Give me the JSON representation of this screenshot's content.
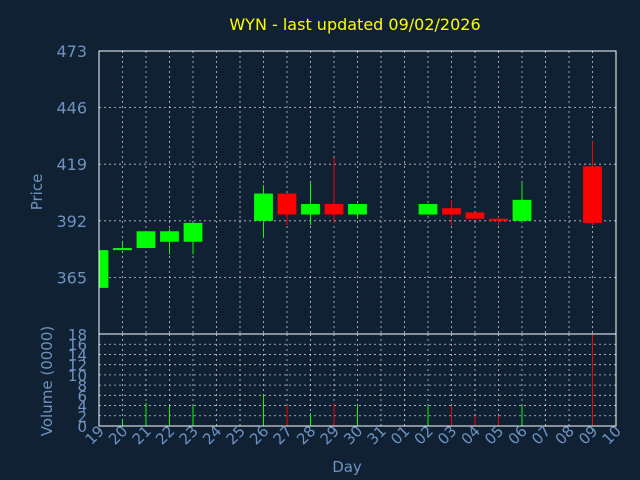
{
  "chart_data": [
    {
      "type": "candlestick",
      "title": "WYN - last updated 09/02/2026",
      "ylabel": "Price",
      "xlabel": "Day",
      "ylim": [
        338,
        473
      ],
      "yticks": [
        365,
        392,
        419,
        446,
        473
      ],
      "grid": true,
      "x": [
        "19",
        "20",
        "21",
        "22",
        "23",
        "24",
        "25",
        "26",
        "27",
        "28",
        "29",
        "30",
        "31",
        "01",
        "02",
        "03",
        "04",
        "05",
        "06",
        "07",
        "08",
        "09",
        "10"
      ],
      "candles": [
        {
          "day": "19",
          "open": 360,
          "close": 378,
          "high": 378,
          "low": 359,
          "color": "up"
        },
        {
          "day": "20",
          "open": 378,
          "close": 379,
          "high": 382,
          "low": 378,
          "color": "up"
        },
        {
          "day": "21",
          "open": 379,
          "close": 387,
          "high": 387,
          "low": 379,
          "color": "up"
        },
        {
          "day": "22",
          "open": 382,
          "close": 387,
          "high": 388,
          "low": 376,
          "color": "up"
        },
        {
          "day": "23",
          "open": 382,
          "close": 391,
          "high": 391,
          "low": 376,
          "color": "up"
        },
        {
          "day": "26",
          "open": 392,
          "close": 405,
          "high": 409,
          "low": 384,
          "color": "up"
        },
        {
          "day": "27",
          "open": 405,
          "close": 395,
          "high": 405,
          "low": 390,
          "color": "down"
        },
        {
          "day": "28",
          "open": 395,
          "close": 400,
          "high": 410,
          "low": 390,
          "color": "up"
        },
        {
          "day": "29",
          "open": 400,
          "close": 395,
          "high": 422,
          "low": 391,
          "color": "down"
        },
        {
          "day": "30",
          "open": 395,
          "close": 400,
          "high": 400,
          "low": 393,
          "color": "up"
        },
        {
          "day": "02",
          "open": 395,
          "close": 400,
          "high": 400,
          "low": 395,
          "color": "up"
        },
        {
          "day": "03",
          "open": 398,
          "close": 395,
          "high": 402,
          "low": 390,
          "color": "down"
        },
        {
          "day": "04",
          "open": 396,
          "close": 393,
          "high": 396,
          "low": 393,
          "color": "down"
        },
        {
          "day": "05",
          "open": 393,
          "close": 392,
          "high": 394,
          "low": 390,
          "color": "down"
        },
        {
          "day": "06",
          "open": 392,
          "close": 402,
          "high": 410,
          "low": 391,
          "color": "up"
        },
        {
          "day": "09",
          "open": 418,
          "close": 391,
          "high": 430,
          "low": 390,
          "color": "down"
        }
      ]
    },
    {
      "type": "bar",
      "ylabel": "Volume (0000)",
      "ylim": [
        0,
        18
      ],
      "yticks": [
        0,
        2,
        4,
        6,
        8,
        10,
        12,
        14,
        16,
        18
      ],
      "grid": true,
      "x": [
        "19",
        "20",
        "21",
        "22",
        "23",
        "24",
        "25",
        "26",
        "27",
        "28",
        "29",
        "30",
        "31",
        "01",
        "02",
        "03",
        "04",
        "05",
        "06",
        "07",
        "08",
        "09",
        "10"
      ],
      "bars": [
        {
          "day": "20",
          "value": 1,
          "color": "up"
        },
        {
          "day": "21",
          "value": 4.5,
          "color": "up"
        },
        {
          "day": "22",
          "value": 4,
          "color": "up"
        },
        {
          "day": "23",
          "value": 4,
          "color": "up"
        },
        {
          "day": "26",
          "value": 6,
          "color": "up"
        },
        {
          "day": "27",
          "value": 4,
          "color": "down"
        },
        {
          "day": "28",
          "value": 2.5,
          "color": "up"
        },
        {
          "day": "29",
          "value": 4.5,
          "color": "down"
        },
        {
          "day": "30",
          "value": 4,
          "color": "up"
        },
        {
          "day": "02",
          "value": 4,
          "color": "up"
        },
        {
          "day": "03",
          "value": 4,
          "color": "down"
        },
        {
          "day": "04",
          "value": 2,
          "color": "down"
        },
        {
          "day": "05",
          "value": 2,
          "color": "down"
        },
        {
          "day": "06",
          "value": 4,
          "color": "up"
        },
        {
          "day": "09",
          "value": 18,
          "color": "down"
        }
      ]
    }
  ],
  "colors": {
    "background": "#0f2133",
    "up": "#00ff00",
    "down": "#ff0000",
    "text": "#6f93c0",
    "title": "#ffff00",
    "grid": "#ffffff"
  }
}
